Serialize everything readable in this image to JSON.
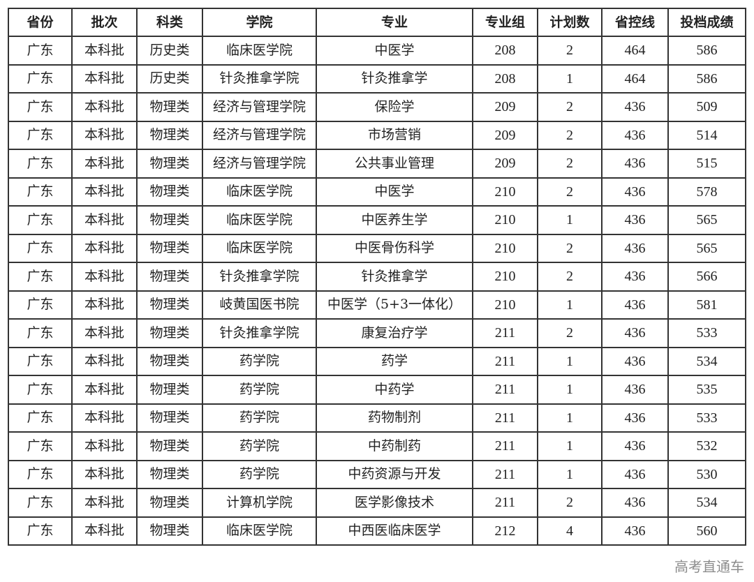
{
  "table": {
    "headers": [
      "省份",
      "批次",
      "科类",
      "学院",
      "专业",
      "专业组",
      "计划数",
      "省控线",
      "投档成绩"
    ],
    "rows": [
      [
        "广东",
        "本科批",
        "历史类",
        "临床医学院",
        "中医学",
        "208",
        "2",
        "464",
        "586"
      ],
      [
        "广东",
        "本科批",
        "历史类",
        "针灸推拿学院",
        "针灸推拿学",
        "208",
        "1",
        "464",
        "586"
      ],
      [
        "广东",
        "本科批",
        "物理类",
        "经济与管理学院",
        "保险学",
        "209",
        "2",
        "436",
        "509"
      ],
      [
        "广东",
        "本科批",
        "物理类",
        "经济与管理学院",
        "市场营销",
        "209",
        "2",
        "436",
        "514"
      ],
      [
        "广东",
        "本科批",
        "物理类",
        "经济与管理学院",
        "公共事业管理",
        "209",
        "2",
        "436",
        "515"
      ],
      [
        "广东",
        "本科批",
        "物理类",
        "临床医学院",
        "中医学",
        "210",
        "2",
        "436",
        "578"
      ],
      [
        "广东",
        "本科批",
        "物理类",
        "临床医学院",
        "中医养生学",
        "210",
        "1",
        "436",
        "565"
      ],
      [
        "广东",
        "本科批",
        "物理类",
        "临床医学院",
        "中医骨伤科学",
        "210",
        "2",
        "436",
        "565"
      ],
      [
        "广东",
        "本科批",
        "物理类",
        "针灸推拿学院",
        "针灸推拿学",
        "210",
        "2",
        "436",
        "566"
      ],
      [
        "广东",
        "本科批",
        "物理类",
        "岐黄国医书院",
        "中医学（5+3一体化）",
        "210",
        "1",
        "436",
        "581"
      ],
      [
        "广东",
        "本科批",
        "物理类",
        "针灸推拿学院",
        "康复治疗学",
        "211",
        "2",
        "436",
        "533"
      ],
      [
        "广东",
        "本科批",
        "物理类",
        "药学院",
        "药学",
        "211",
        "1",
        "436",
        "534"
      ],
      [
        "广东",
        "本科批",
        "物理类",
        "药学院",
        "中药学",
        "211",
        "1",
        "436",
        "535"
      ],
      [
        "广东",
        "本科批",
        "物理类",
        "药学院",
        "药物制剂",
        "211",
        "1",
        "436",
        "533"
      ],
      [
        "广东",
        "本科批",
        "物理类",
        "药学院",
        "中药制药",
        "211",
        "1",
        "436",
        "532"
      ],
      [
        "广东",
        "本科批",
        "物理类",
        "药学院",
        "中药资源与开发",
        "211",
        "1",
        "436",
        "530"
      ],
      [
        "广东",
        "本科批",
        "物理类",
        "计算机学院",
        "医学影像技术",
        "211",
        "2",
        "436",
        "534"
      ],
      [
        "广东",
        "本科批",
        "物理类",
        "临床医学院",
        "中西医临床医学",
        "212",
        "4",
        "436",
        "560"
      ]
    ]
  },
  "watermark": "高考直通车"
}
